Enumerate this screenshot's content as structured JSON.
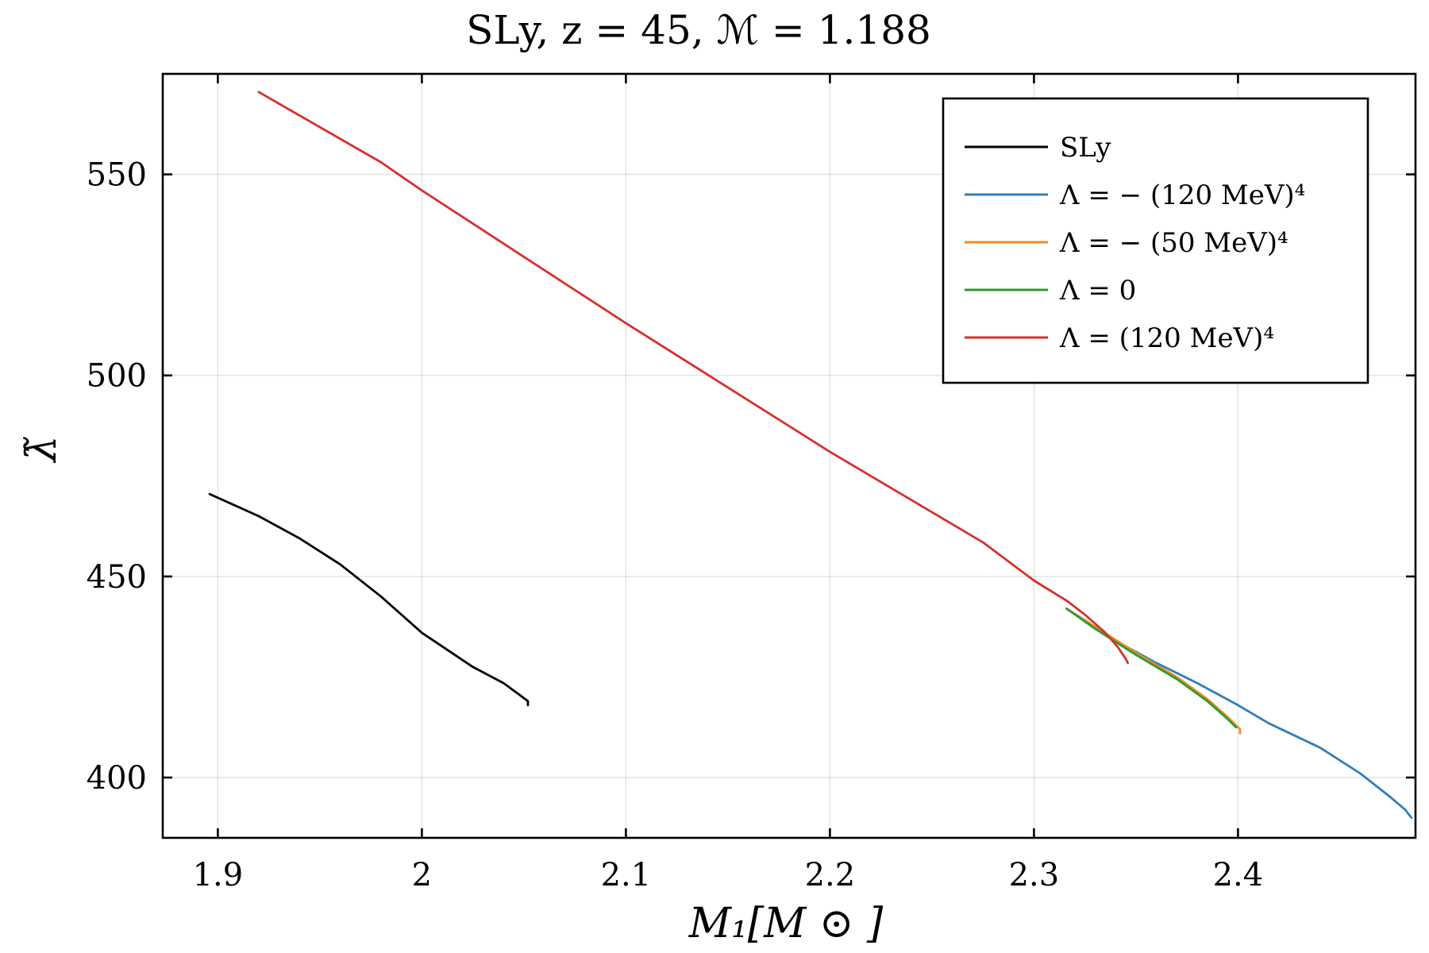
{
  "chart_data": {
    "type": "line",
    "title": "SLy, z = 45, ℳ = 1.188",
    "xlabel": "M₁[M ⊙ ]",
    "ylabel": "λ̃",
    "xlim": [
      1.873,
      2.487
    ],
    "ylim": [
      385,
      575
    ],
    "xticks": [
      1.9,
      2.0,
      2.1,
      2.2,
      2.3,
      2.4
    ],
    "xtick_labels": [
      "1.9",
      "2",
      "2.1",
      "2.2",
      "2.3",
      "2.4"
    ],
    "yticks": [
      400,
      450,
      500,
      550
    ],
    "ytick_labels": [
      "400",
      "450",
      "500",
      "550"
    ],
    "grid": true,
    "legend_position": "top-right",
    "series": [
      {
        "name": "SLy",
        "color": "#000000",
        "x": [
          1.896,
          1.92,
          1.94,
          1.96,
          1.98,
          2.0,
          2.025,
          2.04,
          2.048,
          2.052,
          2.052
        ],
        "y": [
          470.5,
          465.0,
          459.5,
          453.0,
          445.0,
          436.0,
          427.5,
          423.5,
          420.5,
          419.0,
          418.0
        ]
      },
      {
        "name": "Λ =  − (120 MeV)⁴",
        "color": "#2f7ebc",
        "x": [
          2.316,
          2.34,
          2.36,
          2.38,
          2.4,
          2.415,
          2.44,
          2.46,
          2.475,
          2.482,
          2.485
        ],
        "y": [
          442.0,
          434.0,
          428.5,
          423.5,
          418.0,
          413.5,
          407.5,
          401.0,
          395.0,
          392.0,
          390.0
        ]
      },
      {
        "name": "Λ =  − (50 MeV)⁴",
        "color": "#f28a20",
        "x": [
          2.316,
          2.33,
          2.35,
          2.37,
          2.385,
          2.395,
          2.399,
          2.401,
          2.401
        ],
        "y": [
          442.0,
          437.5,
          431.0,
          425.0,
          419.5,
          415.0,
          413.0,
          412.0,
          411.0
        ]
      },
      {
        "name": "Λ = 0",
        "color": "#2f9a2f",
        "x": [
          2.316,
          2.33,
          2.35,
          2.37,
          2.385,
          2.395,
          2.399
        ],
        "y": [
          442.0,
          437.0,
          430.5,
          424.5,
          419.0,
          414.5,
          412.5
        ]
      },
      {
        "name": "Λ = (120 MeV)⁴",
        "color": "#d8302c",
        "x": [
          1.92,
          1.98,
          2.0,
          2.05,
          2.1,
          2.15,
          2.2,
          2.25,
          2.275,
          2.3,
          2.316,
          2.325,
          2.335,
          2.341,
          2.345,
          2.346
        ],
        "y": [
          570.5,
          553.0,
          546.0,
          529.5,
          513.0,
          497.0,
          481.0,
          466.0,
          458.5,
          449.0,
          444.0,
          440.5,
          436.0,
          432.5,
          429.5,
          428.5
        ]
      }
    ]
  }
}
